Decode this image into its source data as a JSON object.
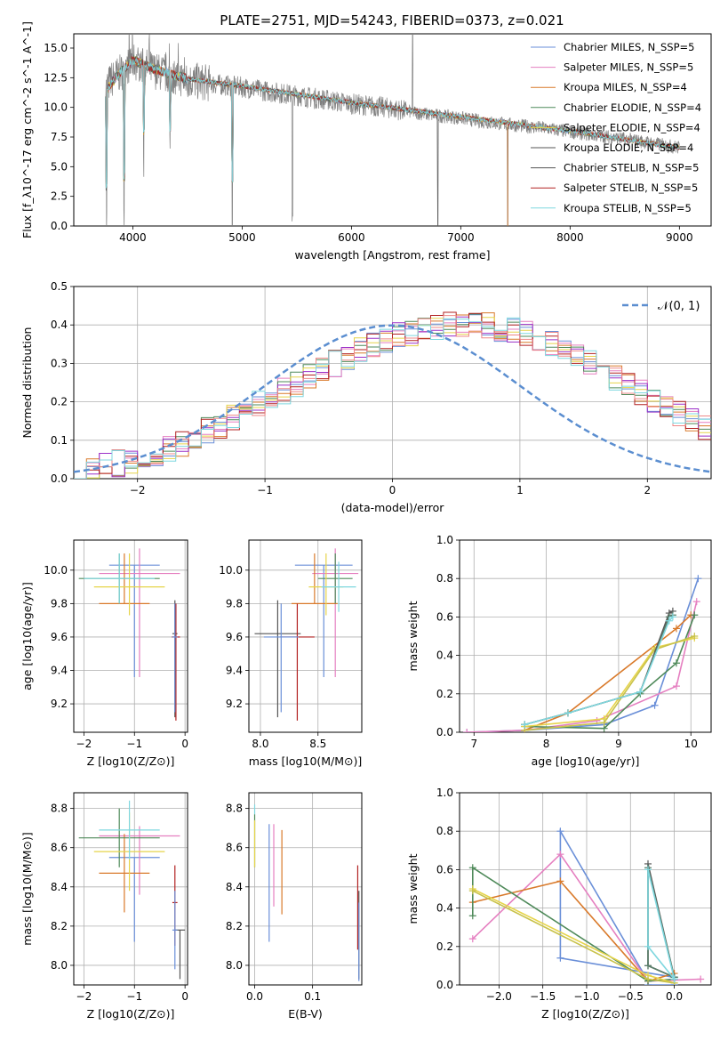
{
  "figure_title": "PLATE=2751, MJD=54243, FIBERID=0373, z=0.021",
  "colors": [
    "#6a8fd8",
    "#e57fc0",
    "#d97a2b",
    "#4f8a5a",
    "#e6d44a",
    "#555555",
    "#b22222",
    "#7fd7df"
  ],
  "chart_data": [
    {
      "id": "spectrum",
      "type": "line",
      "title": "PLATE=2751, MJD=54243, FIBERID=0373, z=0.021",
      "xlabel": "wavelength [Angstrom, rest frame]",
      "ylabel": "Flux [f_λ10^-17 erg cm^-2 s^-1 A^-1]",
      "xlim": [
        3460,
        9290
      ],
      "ylim": [
        0,
        16.2
      ],
      "xticks": [
        "4000",
        "5000",
        "6000",
        "7000",
        "8000",
        "9000"
      ],
      "yticks": [
        "0.0",
        "2.5",
        "5.0",
        "7.5",
        "10.0",
        "12.5",
        "15.0"
      ],
      "grid": false,
      "legend_position": "top-right",
      "data_continuum": {
        "x": [
          3750,
          3800,
          3900,
          4000,
          4100,
          4200,
          4300,
          4500,
          4800,
          5000,
          5200,
          5500,
          5800,
          6000,
          6300,
          6500,
          6700,
          7000,
          7200,
          7500,
          7800,
          8200,
          8600,
          9000
        ],
        "y": [
          11.5,
          12.3,
          13.0,
          13.9,
          13.5,
          13.1,
          12.8,
          12.3,
          11.9,
          11.7,
          11.4,
          11.0,
          10.6,
          10.3,
          10.0,
          9.7,
          9.4,
          9.1,
          8.8,
          8.5,
          8.2,
          7.7,
          7.2,
          6.6
        ]
      },
      "model_continuum": {
        "x": [
          3750,
          3850,
          4000,
          4200,
          4500,
          5000,
          5500,
          6000,
          6500,
          7000,
          7500,
          8000,
          8500,
          9000
        ],
        "y": [
          11.3,
          12.6,
          14.0,
          13.2,
          12.4,
          11.8,
          11.1,
          10.4,
          9.8,
          9.2,
          8.6,
          8.0,
          7.3,
          6.6
        ]
      },
      "features": [
        {
          "x": 3760,
          "depth": 11.5
        },
        {
          "x": 3920,
          "depth": 13.0
        },
        {
          "x": 4100,
          "depth": 8.0
        },
        {
          "x": 4340,
          "depth": 6.5
        },
        {
          "x": 4910,
          "depth": 11.5
        },
        {
          "x": 5460,
          "depth": 10.5
        },
        {
          "x": 6790,
          "depth": 9.0
        },
        {
          "x": 7430,
          "depth": 8.8
        }
      ],
      "spike": {
        "x": 6560,
        "height": 16.2
      },
      "series": [
        {
          "name": "Chabrier MILES, N_SSP=5"
        },
        {
          "name": "Salpeter MILES, N_SSP=5"
        },
        {
          "name": "Kroupa MILES, N_SSP=4"
        },
        {
          "name": "Chabrier ELODIE, N_SSP=4"
        },
        {
          "name": "Salpeter ELODIE, N_SSP=4"
        },
        {
          "name": "Kroupa ELODIE, N_SSP=4"
        },
        {
          "name": "Chabrier STELIB, N_SSP=5"
        },
        {
          "name": "Salpeter STELIB, N_SSP=5"
        },
        {
          "name": "Kroupa STELIB, N_SSP=5"
        }
      ],
      "model_ranges": [
        {
          "from": 3750,
          "to": 9000
        },
        {
          "from": 3750,
          "to": 9000
        },
        {
          "from": 3750,
          "to": 7430
        },
        {
          "from": 3750,
          "to": 9000
        },
        {
          "from": 3750,
          "to": 9000
        },
        {
          "from": 3750,
          "to": 6790
        },
        {
          "from": 3750,
          "to": 9000
        },
        {
          "from": 3750,
          "to": 9000
        },
        {
          "from": 3750,
          "to": 9000
        }
      ]
    },
    {
      "id": "residuals",
      "type": "line",
      "xlabel": "(data-model)/error",
      "ylabel": "Normed distribution",
      "xlim": [
        -2.5,
        2.5
      ],
      "ylim": [
        0,
        0.5
      ],
      "xticks": [
        "−2",
        "−1",
        "0",
        "1",
        "2"
      ],
      "yticks": [
        "0.0",
        "0.1",
        "0.2",
        "0.3",
        "0.4",
        "0.5"
      ],
      "grid": true,
      "legend_position": "top-right",
      "gaussian_label": "𝒩(0, 1)",
      "bin_edges_start": -2.5,
      "bin_width": 0.1,
      "base_heights": [
        0.018,
        0.025,
        0.032,
        0.04,
        0.048,
        0.055,
        0.068,
        0.08,
        0.093,
        0.108,
        0.125,
        0.14,
        0.158,
        0.175,
        0.193,
        0.21,
        0.228,
        0.245,
        0.265,
        0.28,
        0.3,
        0.317,
        0.333,
        0.347,
        0.36,
        0.371,
        0.38,
        0.39,
        0.396,
        0.4,
        0.402,
        0.4,
        0.398,
        0.392,
        0.384,
        0.375,
        0.363,
        0.35,
        0.335,
        0.318,
        0.3,
        0.283,
        0.264,
        0.245,
        0.225,
        0.206,
        0.186,
        0.168,
        0.15,
        0.133
      ]
    },
    {
      "id": "age_vs_Z",
      "type": "scatter",
      "xlabel": "Z [log10(Z/Z⊙)]",
      "ylabel": "age [log10(age/yr)]",
      "xlim": [
        -2.2,
        0.05
      ],
      "ylim": [
        9.03,
        10.18
      ],
      "xticks": [
        "−2",
        "−1",
        "0"
      ],
      "yticks": [
        "9.2",
        "9.4",
        "9.6",
        "9.8",
        "10.0"
      ],
      "grid": true,
      "points": [
        {
          "x": -1.0,
          "y": 10.03,
          "xerr": 0.5,
          "yerr_lo": 0.67,
          "yerr_hi": 0.0
        },
        {
          "x": -0.9,
          "y": 9.98,
          "xerr": 0.8,
          "yerr_lo": 0.62,
          "yerr_hi": 0.15
        },
        {
          "x": -1.2,
          "y": 9.8,
          "xerr": 0.5,
          "yerr_lo": 0.0,
          "yerr_hi": 0.3
        },
        {
          "x": -1.3,
          "y": 9.95,
          "xerr": 0.8,
          "yerr_lo": 0.15,
          "yerr_hi": 0.15
        },
        {
          "x": -1.1,
          "y": 9.9,
          "xerr": 0.7,
          "yerr_lo": 0.17,
          "yerr_hi": 0.2
        },
        {
          "x": -0.2,
          "y": 9.62,
          "xerr": 0.05,
          "yerr_lo": 0.5,
          "yerr_hi": 0.2
        },
        {
          "x": -0.18,
          "y": 9.6,
          "xerr": 0.08,
          "yerr_lo": 0.5,
          "yerr_hi": 0.2
        },
        {
          "x": -1.3,
          "y": 9.95,
          "xerr": 0.7,
          "yerr_lo": 0.15,
          "yerr_hi": 0.15
        },
        {
          "x": -0.2,
          "y": 9.6,
          "xerr": 0.05,
          "yerr_lo": 0.45,
          "yerr_hi": 0.2
        }
      ]
    },
    {
      "id": "age_vs_mass",
      "type": "scatter",
      "xlabel": "mass [log10(M/M⊙)]",
      "ylabel": "",
      "xlim": [
        7.9,
        8.88
      ],
      "ylim": [
        9.03,
        10.18
      ],
      "xticks": [
        "8.0",
        "8.5"
      ],
      "yticks": [
        "9.2",
        "9.4",
        "9.6",
        "9.8",
        "10.0"
      ],
      "grid": true,
      "points": [
        {
          "x": 8.55,
          "y": 10.03,
          "xerr": 0.25,
          "yerr_lo": 0.67,
          "yerr_hi": 0.0
        },
        {
          "x": 8.65,
          "y": 9.98,
          "xerr": 0.2,
          "yerr_lo": 0.62,
          "yerr_hi": 0.15
        },
        {
          "x": 8.47,
          "y": 9.8,
          "xerr": 0.2,
          "yerr_lo": 0.0,
          "yerr_hi": 0.3
        },
        {
          "x": 8.65,
          "y": 9.95,
          "xerr": 0.15,
          "yerr_lo": 0.15,
          "yerr_hi": 0.15
        },
        {
          "x": 8.57,
          "y": 9.9,
          "xerr": 0.15,
          "yerr_lo": 0.17,
          "yerr_hi": 0.2
        },
        {
          "x": 8.15,
          "y": 9.62,
          "xerr": 0.2,
          "yerr_lo": 0.5,
          "yerr_hi": 0.2
        },
        {
          "x": 8.32,
          "y": 9.6,
          "xerr": 0.15,
          "yerr_lo": 0.5,
          "yerr_hi": 0.2
        },
        {
          "x": 8.68,
          "y": 9.9,
          "xerr": 0.15,
          "yerr_lo": 0.15,
          "yerr_hi": 0.15
        },
        {
          "x": 8.18,
          "y": 9.6,
          "xerr": 0.15,
          "yerr_lo": 0.45,
          "yerr_hi": 0.2
        }
      ]
    },
    {
      "id": "mass_weight_vs_age",
      "type": "line",
      "xlabel": "age [log10(age/yr)]",
      "ylabel": "mass weight",
      "xlim": [
        6.8,
        10.28
      ],
      "ylim": [
        0,
        1.0
      ],
      "xticks": [
        "7",
        "8",
        "9",
        "10"
      ],
      "yticks": [
        "0.0",
        "0.2",
        "0.4",
        "0.6",
        "0.8",
        "1.0"
      ],
      "grid": true,
      "series": [
        {
          "x": [
            6.9,
            7.7,
            8.8,
            9.5,
            10.1
          ],
          "y": [
            0.0,
            0.01,
            0.04,
            0.14,
            0.8
          ]
        },
        {
          "x": [
            6.9,
            7.7,
            8.7,
            9.8,
            10.08
          ],
          "y": [
            0.0,
            0.01,
            0.06,
            0.24,
            0.68
          ]
        },
        {
          "x": [
            7.7,
            8.3,
            9.8,
            10.0
          ],
          "y": [
            0.01,
            0.1,
            0.54,
            0.61
          ]
        },
        {
          "x": [
            7.7,
            8.8,
            9.3,
            9.8,
            10.05
          ],
          "y": [
            0.03,
            0.02,
            0.2,
            0.36,
            0.61
          ]
        },
        {
          "x": [
            7.7,
            8.8,
            9.5,
            10.05
          ],
          "y": [
            0.03,
            0.07,
            0.44,
            0.49
          ]
        },
        {
          "x": [
            7.7,
            8.8,
            9.5,
            10.05
          ],
          "y": [
            0.01,
            0.05,
            0.43,
            0.5
          ]
        },
        {
          "x": [
            7.7,
            8.3,
            9.3,
            9.7,
            9.75
          ],
          "y": [
            0.04,
            0.1,
            0.21,
            0.62,
            0.63
          ]
        },
        {
          "x": [
            7.7,
            8.3,
            9.3,
            9.7,
            9.75
          ],
          "y": [
            0.04,
            0.1,
            0.21,
            0.6,
            0.61
          ]
        },
        {
          "x": [
            7.7,
            8.3,
            9.3,
            9.7,
            9.75
          ],
          "y": [
            0.04,
            0.1,
            0.21,
            0.58,
            0.6
          ]
        }
      ]
    },
    {
      "id": "mass_vs_Z",
      "type": "scatter",
      "xlabel": "Z [log10(Z/Z⊙)]",
      "ylabel": "mass [log10(M/M⊙)]",
      "xlim": [
        -2.2,
        0.05
      ],
      "ylim": [
        7.9,
        8.88
      ],
      "xticks": [
        "−2",
        "−1",
        "0"
      ],
      "yticks": [
        "8.0",
        "8.2",
        "8.4",
        "8.6",
        "8.8"
      ],
      "grid": true,
      "points": [
        {
          "x": -1.0,
          "y": 8.55,
          "xerr": 0.5,
          "yerr_lo": 0.43,
          "yerr_hi": 0.0
        },
        {
          "x": -0.9,
          "y": 8.66,
          "xerr": 0.8,
          "yerr_lo": 0.3,
          "yerr_hi": 0.05
        },
        {
          "x": -1.2,
          "y": 8.47,
          "xerr": 0.5,
          "yerr_lo": 0.2,
          "yerr_hi": 0.2
        },
        {
          "x": -1.3,
          "y": 8.65,
          "xerr": 0.8,
          "yerr_lo": 0.15,
          "yerr_hi": 0.15
        },
        {
          "x": -1.1,
          "y": 8.58,
          "xerr": 0.7,
          "yerr_lo": 0.2,
          "yerr_hi": 0.2
        },
        {
          "x": -0.1,
          "y": 8.18,
          "xerr": 0.1,
          "yerr_lo": 0.25,
          "yerr_hi": 0.0
        },
        {
          "x": -0.2,
          "y": 8.32,
          "xerr": 0.05,
          "yerr_lo": 0.22,
          "yerr_hi": 0.19
        },
        {
          "x": -1.1,
          "y": 8.69,
          "xerr": 0.6,
          "yerr_lo": 0.15,
          "yerr_hi": 0.15
        },
        {
          "x": -0.2,
          "y": 8.18,
          "xerr": 0.05,
          "yerr_lo": 0.2,
          "yerr_hi": 0.2
        }
      ]
    },
    {
      "id": "mass_vs_EBV",
      "type": "scatter",
      "xlabel": "E(B-V)",
      "ylabel": "",
      "xlim": [
        -0.01,
        0.185
      ],
      "ylim": [
        7.9,
        8.88
      ],
      "xticks": [
        "0.0",
        "0.1"
      ],
      "yticks": [
        "8.0",
        "8.2",
        "8.4",
        "8.6",
        "8.8"
      ],
      "grid": true,
      "points": [
        {
          "x": 0.025,
          "y": 8.42,
          "yerr_lo": 0.3,
          "yerr_hi": 0.3
        },
        {
          "x": 0.033,
          "y": 8.52,
          "yerr_lo": 0.22,
          "yerr_hi": 0.2
        },
        {
          "x": 0.047,
          "y": 8.48,
          "yerr_lo": 0.22,
          "yerr_hi": 0.21
        },
        {
          "x": 0.0,
          "y": 8.72,
          "yerr_lo": 0.22,
          "yerr_hi": 0.05
        },
        {
          "x": 0.0,
          "y": 8.62,
          "yerr_lo": 0.12,
          "yerr_hi": 0.12
        },
        {
          "x": 0.18,
          "y": 8.18,
          "yerr_lo": 0.25,
          "yerr_hi": 0.2
        },
        {
          "x": 0.178,
          "y": 8.3,
          "yerr_lo": 0.22,
          "yerr_hi": 0.21
        },
        {
          "x": 0.0,
          "y": 8.82,
          "yerr_lo": 0.05,
          "yerr_hi": 0.0
        },
        {
          "x": 0.18,
          "y": 8.12,
          "yerr_lo": 0.2,
          "yerr_hi": 0.2
        }
      ]
    },
    {
      "id": "mass_weight_vs_Z",
      "type": "line",
      "xlabel": "Z [log10(Z/Z⊙)]",
      "ylabel": "mass weight",
      "xlim": [
        -2.45,
        0.42
      ],
      "ylim": [
        0,
        1.0
      ],
      "xticks": [
        "−2.0",
        "−1.5",
        "−1.0",
        "−0.5",
        "0.0"
      ],
      "yticks": [
        "0.0",
        "0.2",
        "0.4",
        "0.6",
        "0.8",
        "1.0"
      ],
      "grid": true,
      "series": [
        {
          "x": [
            0.0,
            0.0,
            -1.3,
            -1.3,
            -0.3,
            -0.3,
            0.0
          ],
          "y": [
            0.0,
            0.04,
            0.14,
            0.8,
            0.02,
            0.0,
            0.0
          ]
        },
        {
          "x": [
            0.3,
            -0.3,
            -1.3,
            -2.3
          ],
          "y": [
            0.03,
            0.02,
            0.68,
            0.24
          ]
        },
        {
          "x": [
            0.0,
            -0.3,
            -1.3,
            -2.3
          ],
          "y": [
            0.06,
            0.02,
            0.54,
            0.43
          ]
        },
        {
          "x": [
            0.0,
            -0.3,
            -2.3,
            -2.3
          ],
          "y": [
            0.03,
            0.02,
            0.61,
            0.36
          ]
        },
        {
          "x": [
            0.0,
            -0.3,
            -2.3
          ],
          "y": [
            0.01,
            0.05,
            0.5
          ]
        },
        {
          "x": [
            0.0,
            -0.3,
            -2.3
          ],
          "y": [
            0.01,
            0.03,
            0.49
          ]
        },
        {
          "x": [
            0.0,
            -0.3,
            -0.3,
            0.0
          ],
          "y": [
            0.04,
            0.1,
            0.63,
            0.04
          ]
        },
        {
          "x": [
            0.0,
            -0.3,
            -0.3,
            0.0
          ],
          "y": [
            0.04,
            0.1,
            0.61,
            0.04
          ]
        },
        {
          "x": [
            0.0,
            -0.3,
            -0.3,
            0.0
          ],
          "y": [
            0.03,
            0.2,
            0.6,
            0.03
          ]
        }
      ]
    }
  ]
}
